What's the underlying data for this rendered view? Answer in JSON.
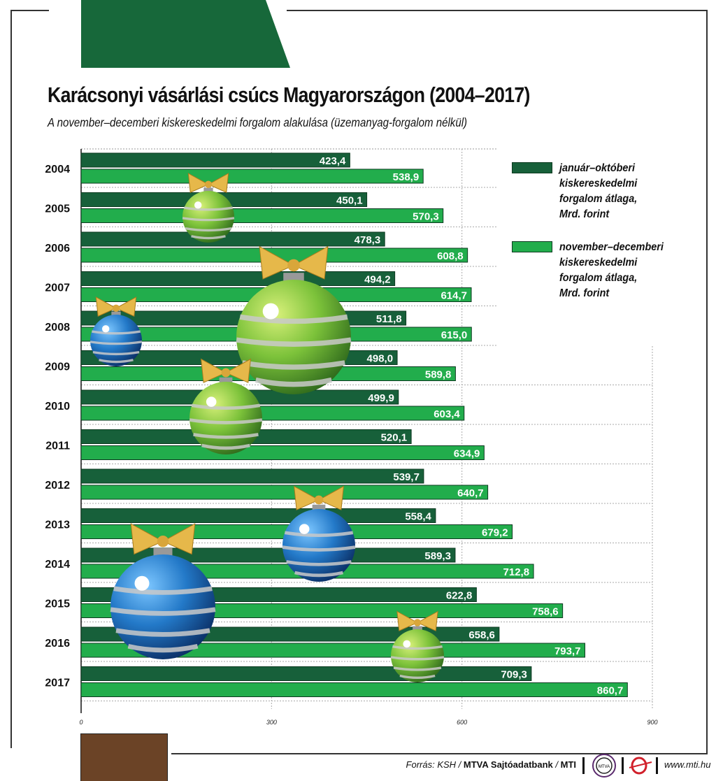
{
  "title": "Karácsonyi vásárlási csúcs Magyarországon (2004–2017)",
  "subtitle": "A november–decemberi kiskereskedelmi forgalom alakulása (üzemanyag-forgalom nélkül)",
  "colors": {
    "dark": "#17603a",
    "light": "#22ad4c",
    "top_block": "#17683a",
    "brown": "#6b4326"
  },
  "chart_data": {
    "type": "bar",
    "orientation": "horizontal",
    "title": "Karácsonyi vásárlási csúcs Magyarországon (2004–2017)",
    "categories": [
      "2004",
      "2005",
      "2006",
      "2007",
      "2008",
      "2009",
      "2010",
      "2011",
      "2012",
      "2013",
      "2014",
      "2015",
      "2016",
      "2017"
    ],
    "series": [
      {
        "name": "január–októberi kiskereskedelmi forgalom átlaga, Mrd. forint",
        "labels": [
          "423,4",
          "450,1",
          "478,3",
          "494,2",
          "511,8",
          "498,0",
          "499,9",
          "520,1",
          "539,7",
          "558,4",
          "589,3",
          "622,8",
          "658,6",
          "709,3"
        ],
        "values": [
          423.4,
          450.1,
          478.3,
          494.2,
          511.8,
          498.0,
          499.9,
          520.1,
          539.7,
          558.4,
          589.3,
          622.8,
          658.6,
          709.3
        ]
      },
      {
        "name": "november–decemberi kiskereskedelmi forgalom átlaga, Mrd. forint",
        "labels": [
          "538,9",
          "570,3",
          "608,8",
          "614,7",
          "615,0",
          "589,8",
          "603,4",
          "634,9",
          "640,7",
          "679,2",
          "712,8",
          "758,6",
          "793,7",
          "860,7"
        ],
        "values": [
          538.9,
          570.3,
          608.8,
          614.7,
          615.0,
          589.8,
          603.4,
          634.9,
          640.7,
          679.2,
          712.8,
          758.6,
          793.7,
          860.7
        ]
      }
    ],
    "xticks": [
      "0",
      "300",
      "600",
      "900"
    ],
    "xlim": [
      0,
      900
    ],
    "grid": true,
    "legend_placement": "top-right"
  },
  "legend": [
    {
      "label": "január–októberi\nkiskereskedelmi\nforgalom átlaga,\nMrd. forint"
    },
    {
      "label": "november–decemberi\nkiskereskedelmi\nforgalom átlaga,\nMrd. forint"
    }
  ],
  "footer": {
    "source_prefix": "Forrás: KSH / ",
    "source_bold": "MTVA Sajtóadatbank",
    "source_mid": " / ",
    "source_mti": "MTI",
    "logo_text": "MTVA",
    "url": "www.mti.hu"
  }
}
